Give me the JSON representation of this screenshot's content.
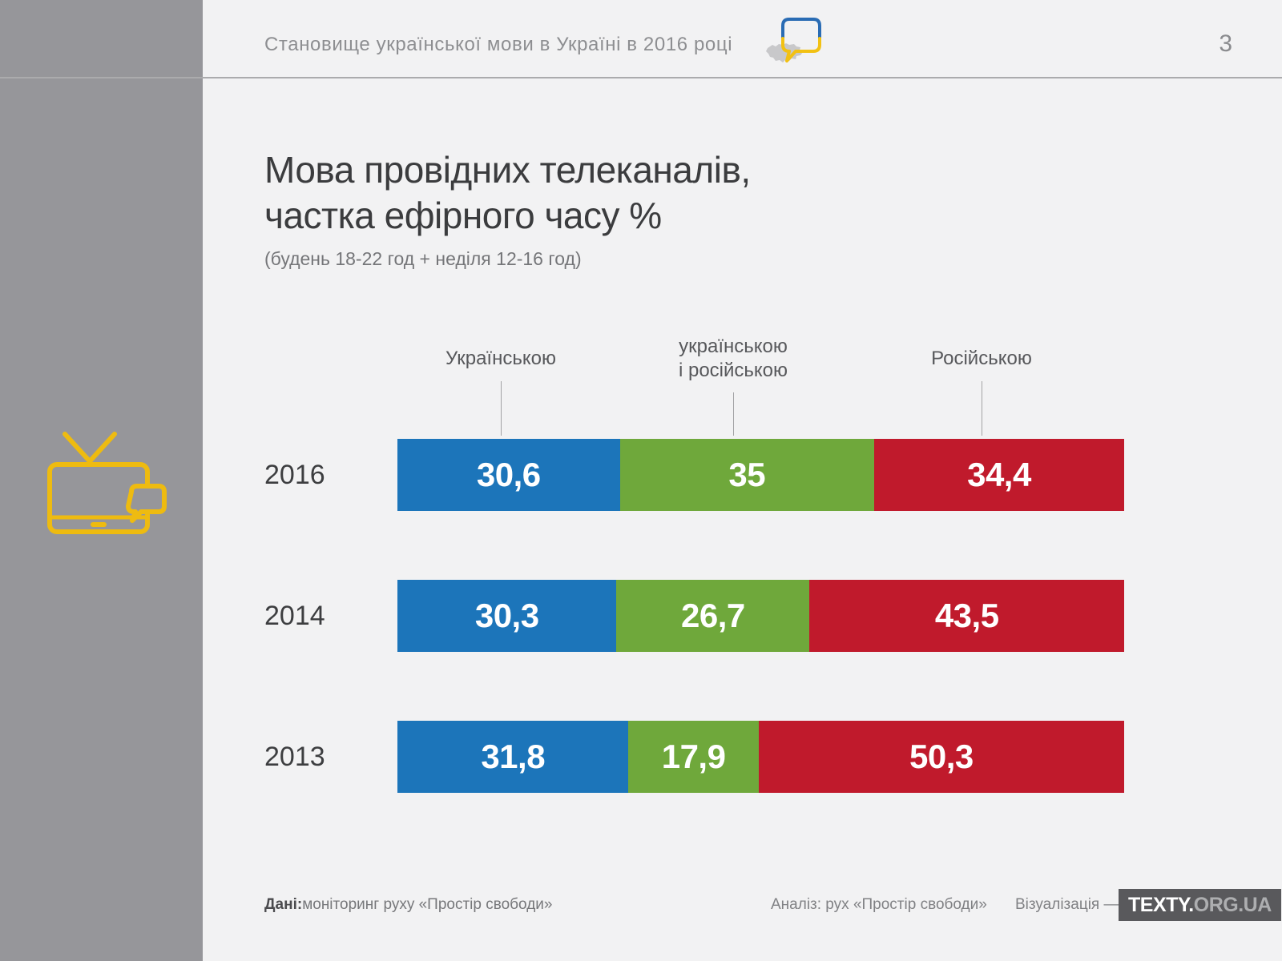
{
  "page": {
    "number": "3"
  },
  "header": {
    "title": "Становище української мови в Україні в 2016 році"
  },
  "title": {
    "line1": "Мова провідних телеканалів,",
    "line2": "частка ефірного часу %",
    "subtitle": "(будень 18-22 год + неділя 12-16 год)"
  },
  "chart_data": {
    "type": "bar",
    "stacked": true,
    "orientation": "horizontal",
    "title": "Мова провідних телеканалів, частка ефірного часу %",
    "subtitle": "(будень 18-22 год + неділя 12-16 год)",
    "categories": [
      "2016",
      "2014",
      "2013"
    ],
    "series": [
      {
        "name": "Українською",
        "color": "#1c75ba",
        "values": [
          30.6,
          30.3,
          31.8
        ],
        "labels": [
          "30,6",
          "30,3",
          "31,8"
        ]
      },
      {
        "name": "українською і російською",
        "color": "#6fa83b",
        "values": [
          35,
          26.7,
          17.9
        ],
        "labels": [
          "35",
          "26,7",
          "17,9"
        ]
      },
      {
        "name": "Російською",
        "color": "#c01a2c",
        "values": [
          34.4,
          43.5,
          50.3
        ],
        "labels": [
          "34,4",
          "43,5",
          "50,3"
        ]
      }
    ],
    "legend": {
      "position": "top",
      "entries": [
        "Українською",
        "українською\nі російською",
        "Російською"
      ]
    },
    "xlim": [
      0,
      100
    ],
    "grid": false,
    "value_format": "comma-decimal, %"
  },
  "footer": {
    "data_label": "Дані:",
    "data_text": " моніторинг руху «Простір свободи»",
    "analysis_text": "Аналіз: рух «Простір свободи»",
    "visualization_text": "Візуалізація —",
    "brand_bold": "TEXTY.",
    "brand_rest": "ORG.UA"
  },
  "colors": {
    "background": "#f2f2f3",
    "sidebar": "#96969a",
    "divider": "#ababad",
    "tv_icon_yellow": "#eebb10",
    "bubble_blue": "#2a6cb4",
    "bubble_yellow": "#f2c113",
    "ukraine_map_gray": "#c8c8ca",
    "badge_background": "#59595c"
  }
}
